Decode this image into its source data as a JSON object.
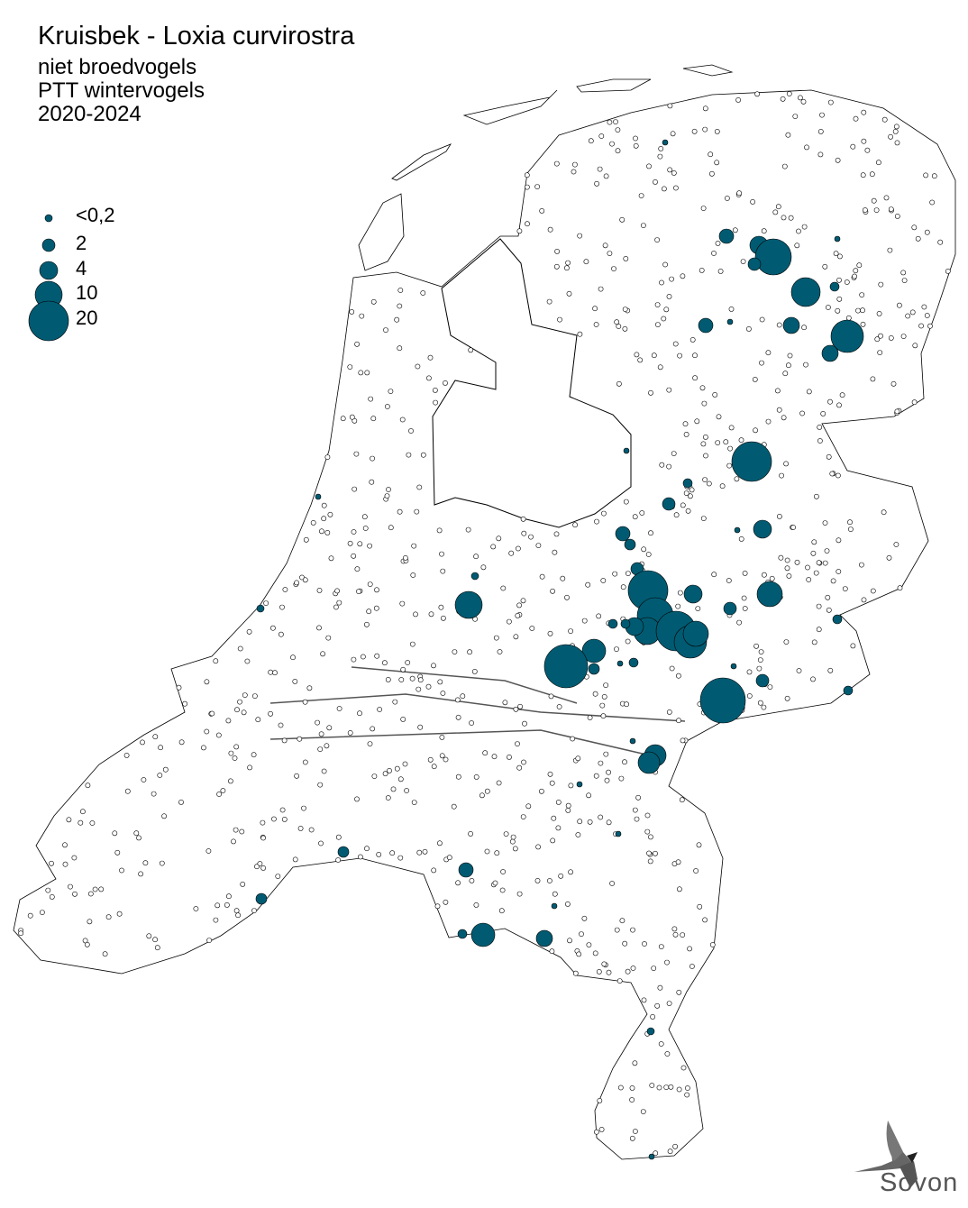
{
  "title": "Kruisbek - Loxia curvirostra",
  "subtitle_lines": [
    "niet broedvogels",
    "PTT wintervogels",
    "2020-2024"
  ],
  "legend": {
    "items": [
      {
        "label": "<0,2",
        "value": 0.2
      },
      {
        "label": "2",
        "value": 2
      },
      {
        "label": "4",
        "value": 4
      },
      {
        "label": "10",
        "value": 10
      },
      {
        "label": "20",
        "value": 20
      }
    ]
  },
  "colors": {
    "marker_fill": "#005b72",
    "empty_marker": "#ffffff",
    "outline": "#000000"
  },
  "logo": {
    "text": "Sovon",
    "icon": "swallow-icon"
  }
}
